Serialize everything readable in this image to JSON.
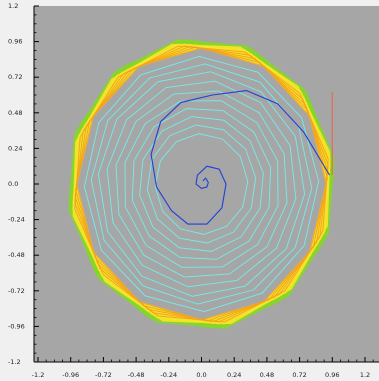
{
  "chart_data": {
    "type": "line",
    "title": "",
    "xlabel": "",
    "ylabel": "",
    "xlim": [
      -1.2,
      1.2
    ],
    "ylim": [
      -1.2,
      1.2
    ],
    "x_ticks": [
      "-1.2",
      "-0.96",
      "-0.72",
      "-0.48",
      "-0.24",
      "0.0",
      "0.24",
      "0.48",
      "0.72",
      "0.96",
      "1.2"
    ],
    "y_ticks": [
      "1.2",
      "0.96",
      "0.72",
      "0.48",
      "0.24",
      "0.0",
      "-0.24",
      "-0.48",
      "-0.72",
      "-0.96",
      "-1.2"
    ],
    "grid": false,
    "colors": {
      "plot_background": "#a6a6a6",
      "outer_background": "#f0f0f0",
      "inner_spiral": "#1e40d6",
      "transient_polygons": "#74ecec",
      "limit_cycle_green": "#86d62a",
      "limit_cycle_yellow": "#f5e32b",
      "limit_cycle_orange": "#f3a21c",
      "vertical_marker": "#e0725d"
    },
    "series": [
      {
        "role": "inner-spiral",
        "x": [
          0.01,
          0.03,
          0.05,
          0.04,
          0.0,
          -0.04,
          -0.03,
          0.04,
          0.13,
          0.18,
          0.15,
          0.04,
          -0.1,
          -0.22,
          -0.33,
          -0.37,
          -0.3,
          -0.15,
          0.08,
          0.33,
          0.56,
          0.75,
          0.94
        ],
        "y": [
          0.02,
          0.04,
          0.01,
          -0.02,
          -0.03,
          0.0,
          0.06,
          0.12,
          0.1,
          0.0,
          -0.16,
          -0.27,
          -0.27,
          -0.18,
          -0.02,
          0.2,
          0.42,
          0.55,
          0.6,
          0.63,
          0.54,
          0.35,
          0.06
        ]
      },
      {
        "role": "transient-polygons",
        "sides": 12,
        "radii": [
          0.34,
          0.4,
          0.46,
          0.52,
          0.58,
          0.64,
          0.7,
          0.76,
          0.81,
          0.86
        ]
      },
      {
        "role": "limit-cycle-band",
        "sides": 12,
        "radius": 0.945
      },
      {
        "role": "vertical-marker",
        "x": [
          0.96,
          0.96
        ],
        "y": [
          0.06,
          0.62
        ]
      }
    ]
  }
}
